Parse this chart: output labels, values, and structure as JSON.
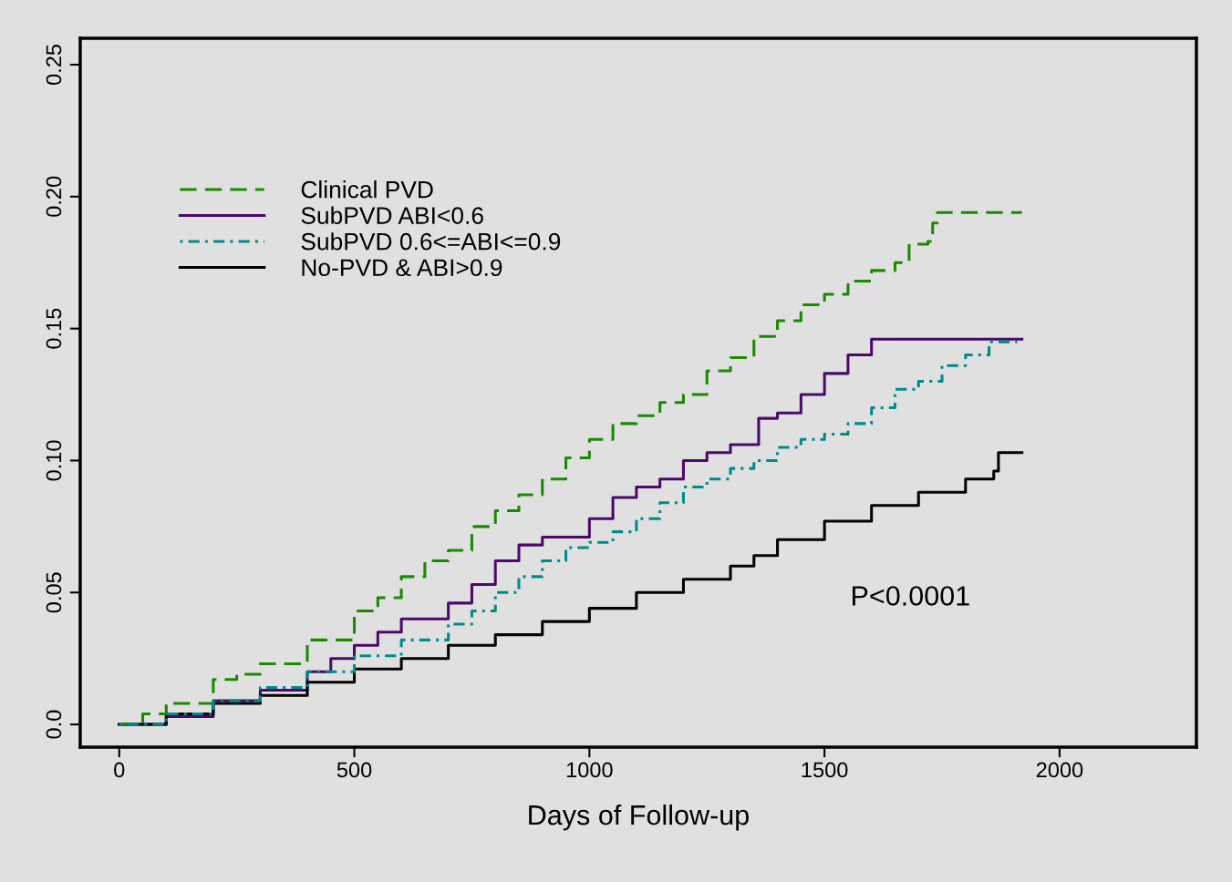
{
  "chart_data": {
    "type": "step",
    "xlabel": "Days of Follow-up",
    "xlim": [
      -83,
      2291
    ],
    "ylim": [
      -0.0086,
      0.26
    ],
    "xticks": [
      0,
      500,
      1000,
      1500,
      2000
    ],
    "yticks": [
      {
        "value": 0,
        "label": "0.0"
      },
      0.05,
      {
        "value": 0.1,
        "label": "0.10"
      },
      0.15,
      {
        "value": 0.2,
        "label": "0.20"
      },
      0.25
    ],
    "grid": false,
    "legend": "top left",
    "annotations": [
      "P<0.0001"
    ],
    "series": [
      {
        "name": "Clinical PVD",
        "color": "#1a8a00",
        "line_style": "dashed",
        "x": [
          0,
          50,
          100,
          200,
          250,
          300,
          400,
          500,
          550,
          600,
          650,
          700,
          750,
          800,
          850,
          900,
          950,
          1000,
          1050,
          1100,
          1150,
          1200,
          1250,
          1300,
          1350,
          1400,
          1450,
          1500,
          1550,
          1600,
          1650,
          1680,
          1720,
          1730,
          1740,
          1920
        ],
        "values": [
          0,
          0.004,
          0.008,
          0.017,
          0.019,
          0.023,
          0.032,
          0.043,
          0.048,
          0.056,
          0.062,
          0.066,
          0.075,
          0.081,
          0.087,
          0.093,
          0.101,
          0.108,
          0.114,
          0.117,
          0.122,
          0.125,
          0.134,
          0.139,
          0.147,
          0.153,
          0.159,
          0.163,
          0.168,
          0.172,
          0.175,
          0.182,
          0.183,
          0.19,
          0.194,
          0.194
        ]
      },
      {
        "name": "SubPVD ABI<0.6",
        "color": "#4b0a6b",
        "line_style": "solid",
        "x": [
          0,
          100,
          200,
          300,
          400,
          450,
          500,
          550,
          600,
          650,
          700,
          750,
          800,
          850,
          900,
          950,
          1000,
          1050,
          1100,
          1150,
          1200,
          1250,
          1300,
          1340,
          1360,
          1400,
          1450,
          1500,
          1550,
          1600,
          1920
        ],
        "values": [
          0,
          0.003,
          0.009,
          0.013,
          0.02,
          0.025,
          0.03,
          0.035,
          0.04,
          0.04,
          0.046,
          0.053,
          0.062,
          0.068,
          0.071,
          0.071,
          0.078,
          0.086,
          0.09,
          0.093,
          0.1,
          0.103,
          0.106,
          0.106,
          0.116,
          0.118,
          0.125,
          0.133,
          0.14,
          0.146,
          0.146
        ]
      },
      {
        "name": "SubPVD 0.6<=ABI<=0.9",
        "color": "#008b8b",
        "line_style": "dotted",
        "x": [
          0,
          100,
          200,
          300,
          400,
          500,
          600,
          700,
          750,
          800,
          850,
          900,
          950,
          1000,
          1050,
          1100,
          1150,
          1200,
          1250,
          1300,
          1350,
          1400,
          1450,
          1500,
          1550,
          1600,
          1650,
          1700,
          1750,
          1800,
          1850,
          1910
        ],
        "values": [
          0,
          0.004,
          0.009,
          0.014,
          0.02,
          0.026,
          0.032,
          0.038,
          0.043,
          0.05,
          0.056,
          0.062,
          0.067,
          0.069,
          0.073,
          0.078,
          0.084,
          0.09,
          0.093,
          0.097,
          0.1,
          0.105,
          0.108,
          0.11,
          0.114,
          0.12,
          0.127,
          0.13,
          0.136,
          0.14,
          0.145,
          0.145
        ]
      },
      {
        "name": "No-PVD & ABI>0.9",
        "color": "#000000",
        "line_style": "solid",
        "x": [
          0,
          100,
          200,
          300,
          400,
          500,
          600,
          700,
          800,
          900,
          1000,
          1100,
          1200,
          1300,
          1350,
          1400,
          1500,
          1600,
          1700,
          1800,
          1860,
          1870,
          1920
        ],
        "values": [
          0,
          0.004,
          0.008,
          0.011,
          0.016,
          0.021,
          0.025,
          0.03,
          0.034,
          0.039,
          0.044,
          0.05,
          0.055,
          0.06,
          0.064,
          0.07,
          0.077,
          0.083,
          0.088,
          0.093,
          0.096,
          0.103,
          0.103
        ]
      }
    ]
  }
}
